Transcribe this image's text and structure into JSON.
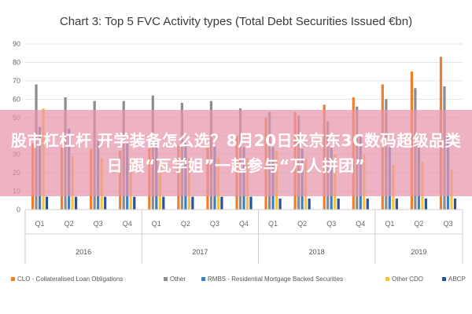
{
  "colors": {
    "clo": "#ef7e2c",
    "other": "#8c8c8c",
    "rmbs": "#3d7fc1",
    "other_cdo": "#f6c33c",
    "abcp": "#2f4f96",
    "grid": "#e3e3e3",
    "banner": "#e896aa"
  },
  "banner": {
    "text": "股市杠杠杆 开学装备怎么选？8月20日来京东3C数码超级品类日 跟“瓦学姐”一起参与“万人拼团”"
  },
  "chart_data": {
    "type": "bar",
    "title": "Chart 3: Top 5 FVC Activity types (Total Debt Securities Issued €bn)",
    "xlabel": "",
    "ylabel": "",
    "ylim": [
      0,
      90
    ],
    "yticks": [
      0,
      10,
      20,
      30,
      40,
      50,
      60,
      70,
      80,
      90
    ],
    "grid": true,
    "legend_position": "bottom",
    "categories": [
      "Q1",
      "Q2",
      "Q3",
      "Q4",
      "Q1",
      "Q2",
      "Q3",
      "Q4",
      "Q1",
      "Q2",
      "Q3",
      "Q4",
      "Q1",
      "Q2",
      "Q3"
    ],
    "groups": [
      {
        "label": "2016",
        "count": 4
      },
      {
        "label": "2017",
        "count": 4
      },
      {
        "label": "2018",
        "count": 4
      },
      {
        "label": "2019",
        "count": 3
      }
    ],
    "series": [
      {
        "name": "CLO - Collateralised Loan Obligations",
        "color_key": "clo",
        "values": [
          36,
          34,
          33,
          32,
          34,
          35,
          36,
          40,
          50,
          53,
          57,
          61,
          68,
          75,
          83
        ]
      },
      {
        "name": "Other",
        "color_key": "other",
        "values": [
          68,
          61,
          59,
          59,
          62,
          58,
          59,
          55,
          53,
          51,
          48,
          56,
          60,
          66,
          67
        ]
      },
      {
        "name": "RMBS - Residential Mortgage Backed Securities",
        "color_key": "rmbs",
        "values": [
          45,
          44,
          38,
          37,
          38,
          36,
          35,
          34,
          34,
          33,
          34,
          40,
          34,
          35,
          40
        ]
      },
      {
        "name": "Other CDO",
        "color_key": "other_cdo",
        "values": [
          55,
          29,
          28,
          27,
          27,
          28,
          28,
          28,
          32,
          28,
          30,
          30,
          24,
          26,
          22
        ]
      },
      {
        "name": "ABCP",
        "color_key": "abcp",
        "values": [
          7,
          7,
          7,
          7,
          7,
          7,
          7,
          7,
          6,
          6,
          6,
          6,
          6,
          6,
          6
        ]
      }
    ]
  }
}
